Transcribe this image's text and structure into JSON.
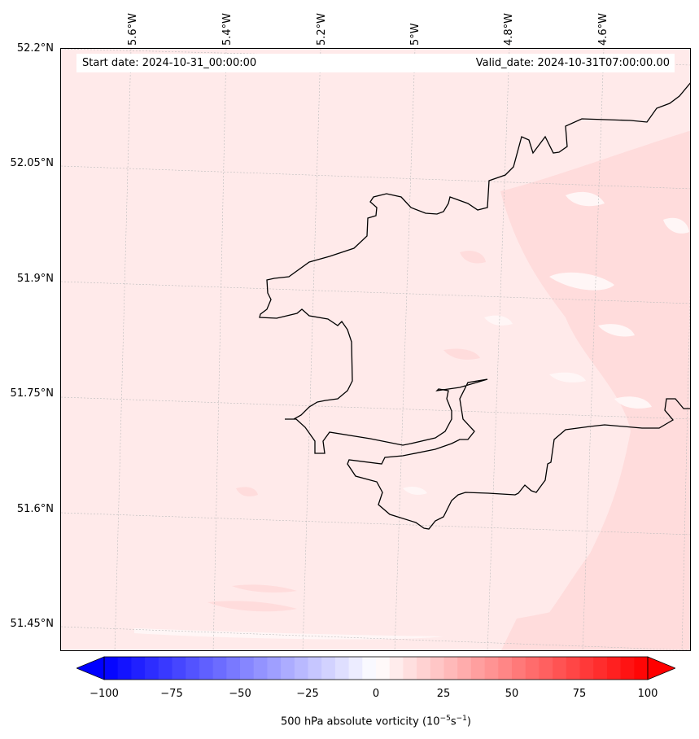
{
  "header": {
    "start_date": "Start date: 2024-10-31_00:00:00",
    "valid_date": "Valid_date: 2024-10-31T07:00:00.00"
  },
  "axes": {
    "lat_labels": [
      "52.2°N",
      "52.05°N",
      "51.9°N",
      "51.75°N",
      "51.6°N",
      "51.45°N"
    ],
    "lon_labels": [
      "5.6°W",
      "5.4°W",
      "5.2°W",
      "5°W",
      "4.8°W",
      "4.6°W"
    ]
  },
  "colorbar": {
    "ticks": [
      "−100",
      "−75",
      "−50",
      "−25",
      "0",
      "25",
      "50",
      "75",
      "100"
    ],
    "label_main": "500 hPa absolute vorticity (10",
    "label_exp1": "−5",
    "label_mid": "s",
    "label_exp2": "−1",
    "label_end": ")",
    "min": -100,
    "max": 100,
    "levels": 40,
    "color_low": "#0000ff",
    "color_mid": "#ffffff",
    "color_high": "#ff0000"
  },
  "map": {
    "field_background": "#ffeaea",
    "field_stronger": "#ffdcdc",
    "field_weak": "#fff6f6",
    "coastline_color": "#000000"
  }
}
